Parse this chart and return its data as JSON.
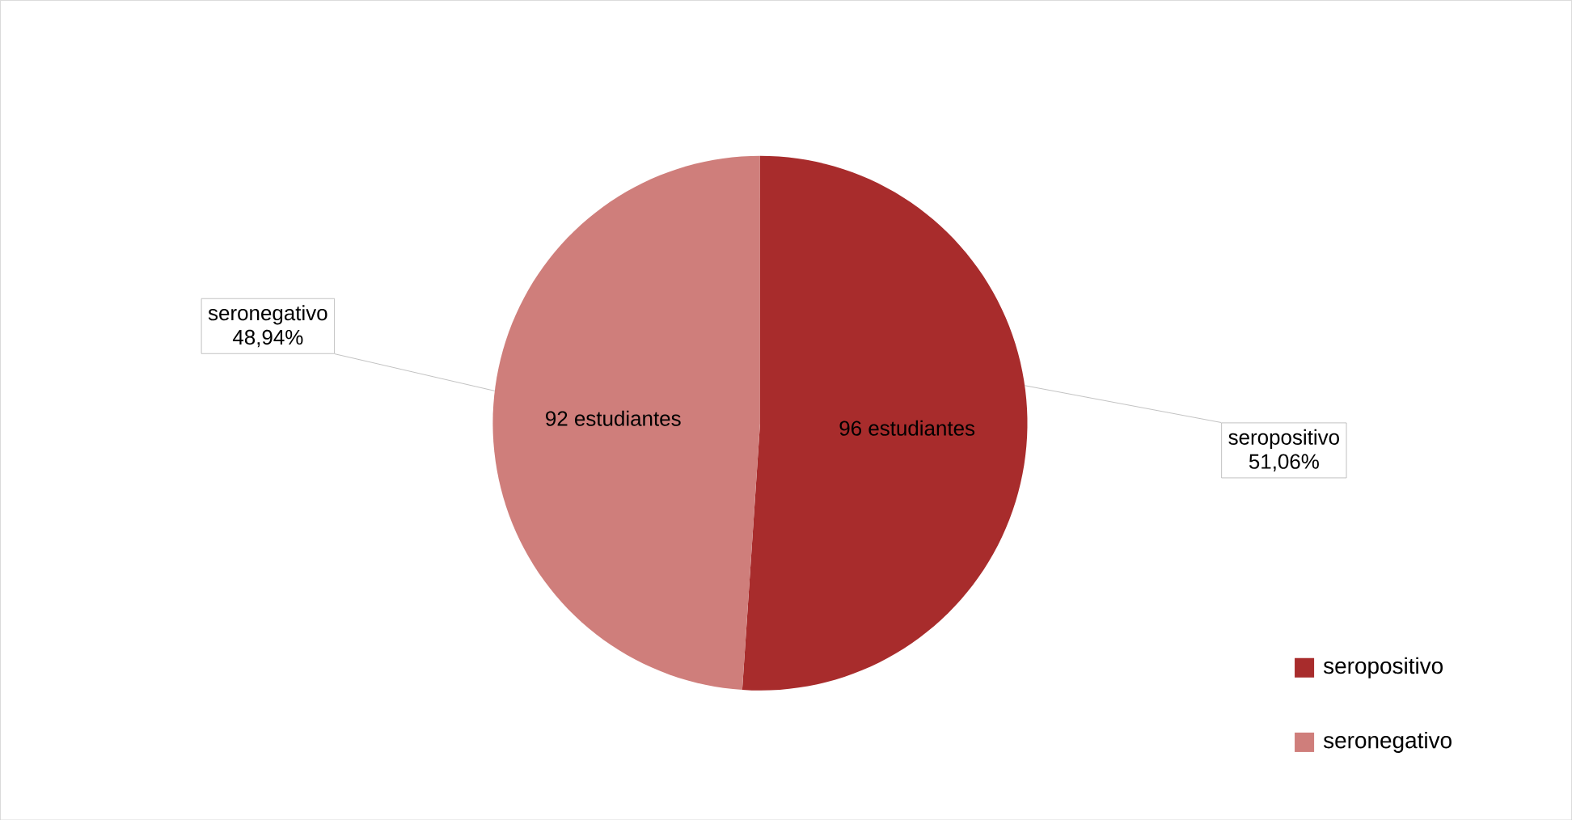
{
  "chart_data": {
    "type": "pie",
    "categories": [
      "seropositivo",
      "seronegativo"
    ],
    "values": [
      96,
      92
    ],
    "colors": [
      "#a82c2c",
      "#cf7e7b"
    ],
    "value_labels": [
      "96 estudiantes",
      "92 estudiantes"
    ],
    "annotations": [
      "51,06%",
      "48,94%"
    ],
    "legend": "bottom right"
  }
}
